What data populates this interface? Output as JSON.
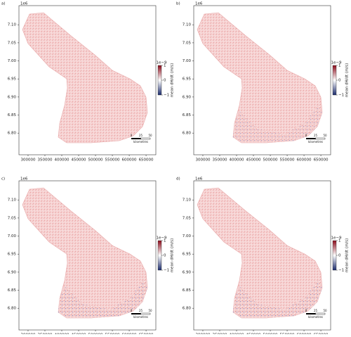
{
  "chart_data": [
    {
      "type": "map",
      "title": "a)",
      "y_offset": "1e6",
      "xlim": [
        273000,
        679000
      ],
      "ylim": [
        6.74,
        7.153
      ],
      "xticks": [
        300000,
        350000,
        400000,
        450000,
        500000,
        550000,
        600000,
        650000
      ],
      "yticks": [
        {
          "value": 6.8,
          "label": "6.80"
        },
        {
          "value": 6.85,
          "label": "6.85"
        },
        {
          "value": 6.9,
          "label": "6.90"
        },
        {
          "value": 6.95,
          "label": "6.95"
        },
        {
          "value": 7.0,
          "label": "7.00"
        },
        {
          "value": 7.05,
          "label": "7.05"
        },
        {
          "value": 7.1,
          "label": "7.10"
        }
      ],
      "colorbar": {
        "label": "mean dH/dt (m/s)",
        "offset": "1e−9",
        "clim": [
          -1,
          1
        ],
        "ticks": [
          1,
          0,
          {
            "value": -1,
            "label": "−1"
          }
        ],
        "colors": [
          "#1a2a6c",
          "#ffffff",
          "#8b0a1a"
        ]
      },
      "scalebar": {
        "ticks": [
          "0",
          "25",
          "50"
        ],
        "label": "kilometres"
      }
    },
    {
      "type": "map",
      "title": "b)",
      "y_offset": "1e6",
      "xlim": [
        273000,
        679000
      ],
      "ylim": [
        6.74,
        7.153
      ],
      "xticks": [
        300000,
        350000,
        400000,
        450000,
        500000,
        550000,
        600000,
        650000
      ],
      "yticks": [
        {
          "value": 6.8,
          "label": "6.80"
        },
        {
          "value": 6.85,
          "label": "6.85"
        },
        {
          "value": 6.9,
          "label": "6.90"
        },
        {
          "value": 6.95,
          "label": "6.95"
        },
        {
          "value": 7.0,
          "label": "7.00"
        },
        {
          "value": 7.05,
          "label": "7.05"
        },
        {
          "value": 7.1,
          "label": "7.10"
        }
      ],
      "colorbar": {
        "label": "mean dH/dt (m/s)",
        "offset": "1e−9",
        "clim": [
          -1,
          1
        ],
        "ticks": [
          1,
          0,
          {
            "value": -1,
            "label": "−1"
          }
        ],
        "colors": [
          "#1a2a6c",
          "#ffffff",
          "#8b0a1a"
        ]
      },
      "scalebar": {
        "ticks": [
          "0",
          "25",
          "50"
        ],
        "label": "kilometres"
      }
    },
    {
      "type": "map",
      "title": "c)",
      "y_offset": "1e6",
      "xlim": [
        273000,
        679000
      ],
      "ylim": [
        6.74,
        7.153
      ],
      "xticks": [
        300000,
        350000,
        400000,
        450000,
        500000,
        550000,
        600000,
        650000
      ],
      "yticks": [
        {
          "value": 6.8,
          "label": "6.80"
        },
        {
          "value": 6.85,
          "label": "6.85"
        },
        {
          "value": 6.9,
          "label": "6.90"
        },
        {
          "value": 6.95,
          "label": "6.95"
        },
        {
          "value": 7.0,
          "label": "7.00"
        },
        {
          "value": 7.05,
          "label": "7.05"
        },
        {
          "value": 7.1,
          "label": "7.10"
        }
      ],
      "colorbar": {
        "label": "mean dH/dt (m/s)",
        "offset": "1e−9",
        "clim": [
          -1,
          1
        ],
        "ticks": [
          1,
          0,
          {
            "value": -1,
            "label": "−1"
          }
        ],
        "colors": [
          "#1a2a6c",
          "#ffffff",
          "#8b0a1a"
        ]
      },
      "scalebar": {
        "ticks": [
          "0",
          "25",
          "50"
        ],
        "label": "kilometres"
      }
    },
    {
      "type": "map",
      "title": "d)",
      "y_offset": "1e6",
      "xlim": [
        273000,
        679000
      ],
      "ylim": [
        6.74,
        7.153
      ],
      "xticks": [
        300000,
        350000,
        400000,
        450000,
        500000,
        550000,
        600000,
        650000
      ],
      "yticks": [
        {
          "value": 6.8,
          "label": "6.80"
        },
        {
          "value": 6.85,
          "label": "6.85"
        },
        {
          "value": 6.9,
          "label": "6.90"
        },
        {
          "value": 6.95,
          "label": "6.95"
        },
        {
          "value": 7.0,
          "label": "7.00"
        },
        {
          "value": 7.05,
          "label": "7.05"
        },
        {
          "value": 7.1,
          "label": "7.10"
        }
      ],
      "colorbar": {
        "label": "mean dH/dt (m/s)",
        "offset": "1e−9",
        "clim": [
          -1,
          1
        ],
        "ticks": [
          1,
          0,
          {
            "value": -1,
            "label": "−1"
          }
        ],
        "colors": [
          "#1a2a6c",
          "#ffffff",
          "#8b0a1a"
        ]
      },
      "scalebar": {
        "ticks": [
          "0",
          "25",
          "50"
        ],
        "label": "kilometres"
      }
    }
  ]
}
